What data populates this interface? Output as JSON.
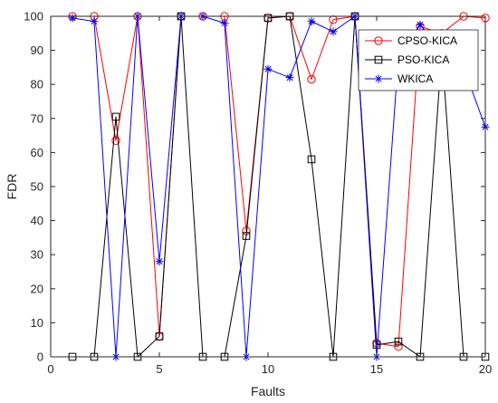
{
  "chart_data": {
    "type": "line",
    "xlabel": "Faults",
    "ylabel": "FDR",
    "xlim": [
      0,
      20
    ],
    "ylim": [
      0,
      100
    ],
    "xticks": [
      0,
      5,
      10,
      15,
      20
    ],
    "yticks": [
      0,
      10,
      20,
      30,
      40,
      50,
      60,
      70,
      80,
      90,
      100
    ],
    "grid": false,
    "legend_position": "top-right",
    "x": [
      1,
      2,
      3,
      4,
      5,
      6,
      7,
      8,
      9,
      10,
      11,
      12,
      13,
      14,
      15,
      16,
      17,
      18,
      19,
      20
    ],
    "series": [
      {
        "name": "CPSO-KICA",
        "color": "#ff0000",
        "marker": "circle",
        "values": [
          100,
          100,
          63.5,
          100,
          6,
          100,
          100,
          100,
          37,
          99.5,
          100,
          81.5,
          99,
          100,
          4,
          3,
          97,
          95,
          100,
          99.5
        ]
      },
      {
        "name": "PSO-KICA",
        "color": "#000000",
        "marker": "square",
        "values": [
          0,
          0,
          70.5,
          0,
          6,
          100,
          0,
          0,
          35.5,
          99.5,
          100,
          58,
          0,
          100,
          3.5,
          4.5,
          0,
          90,
          0,
          0
        ]
      },
      {
        "name": "WKICA",
        "color": "#0000ff",
        "marker": "asterisk",
        "values": [
          99.5,
          98.5,
          0,
          100,
          28,
          100,
          100,
          98,
          0,
          84.5,
          82,
          98.5,
          95.5,
          100,
          0,
          88,
          97.5,
          90,
          85,
          67.5
        ]
      }
    ]
  }
}
